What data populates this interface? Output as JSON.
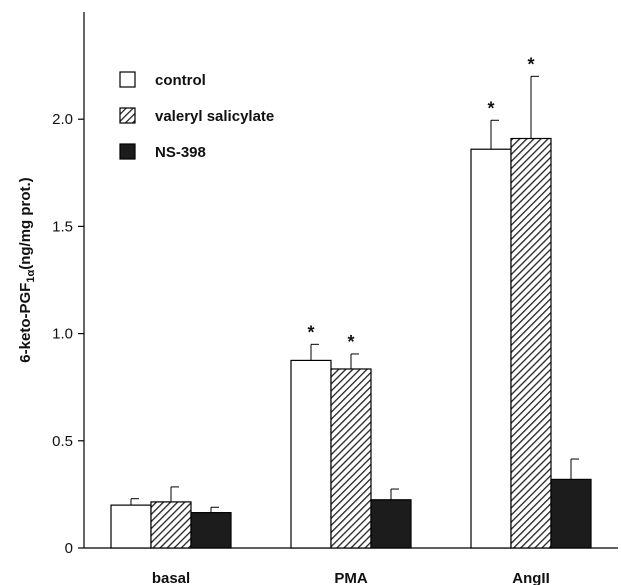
{
  "chart_data": {
    "type": "bar",
    "title": "",
    "xlabel": "",
    "ylabel": {
      "main": "6-keto-PGF",
      "subscript": "1α",
      "suffix": "(ng/mg prot.)"
    },
    "ylim": [
      0,
      2.5
    ],
    "yticks": [
      {
        "value": 0,
        "label": "0"
      },
      {
        "value": 0.5,
        "label": "0.5"
      },
      {
        "value": 1.0,
        "label": "1.0"
      },
      {
        "value": 1.5,
        "label": "1.5"
      },
      {
        "value": 2.0,
        "label": "2.0"
      }
    ],
    "categories": [
      "basal",
      "PMA",
      "AngII"
    ],
    "series": [
      {
        "name": "control",
        "fill": "white",
        "values": [
          0.2,
          0.875,
          1.86
        ],
        "errors": [
          0.03,
          0.075,
          0.135
        ],
        "significance": [
          "",
          "*",
          "*"
        ]
      },
      {
        "name": "valeryl salicylate",
        "fill": "hatch",
        "values": [
          0.215,
          0.835,
          1.91
        ],
        "errors": [
          0.07,
          0.07,
          0.29
        ],
        "significance": [
          "",
          "*",
          "*"
        ]
      },
      {
        "name": "NS-398",
        "fill": "black",
        "values": [
          0.165,
          0.225,
          0.32
        ],
        "errors": [
          0.025,
          0.05,
          0.095
        ],
        "significance": [
          "",
          "",
          ""
        ]
      }
    ],
    "legend_position": "top-left",
    "grid": false
  }
}
